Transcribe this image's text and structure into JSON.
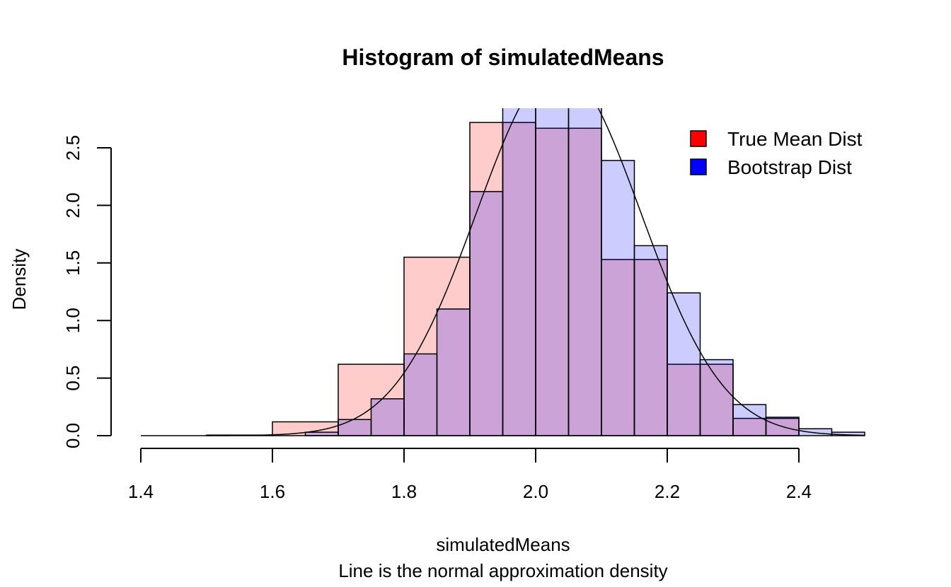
{
  "chart_data": {
    "type": "bar",
    "title": "Histogram of simulatedMeans",
    "xlabel": "simulatedMeans",
    "sub": "Line is the normal approximation density",
    "ylabel": "Density",
    "xlim": [
      1.4,
      2.5
    ],
    "ylim": [
      0,
      2.7
    ],
    "x_ticks": [
      1.4,
      1.6,
      1.8,
      2.0,
      2.2,
      2.4
    ],
    "x_tick_labels": [
      "1.4",
      "1.6",
      "1.8",
      "2.0",
      "2.2",
      "2.4"
    ],
    "y_ticks": [
      0,
      0.5,
      1,
      1.5,
      2,
      2.5
    ],
    "y_tick_labels": [
      "0.0",
      "0.5",
      "1.0",
      "1.5",
      "2.0",
      "2.5"
    ],
    "legend": {
      "position": "top-right",
      "entries": [
        {
          "label": "True Mean Dist",
          "color": "#ff0000"
        },
        {
          "label": "Bootstrap Dist",
          "color": "#0000ff"
        }
      ]
    },
    "series": [
      {
        "name": "True Mean Dist",
        "fill": "rgba(255,0,0,0.2)",
        "bins": [
          {
            "x0": 1.4,
            "x1": 1.5,
            "density": 0
          },
          {
            "x0": 1.5,
            "x1": 1.6,
            "density": 0.005
          },
          {
            "x0": 1.6,
            "x1": 1.7,
            "density": 0.12
          },
          {
            "x0": 1.7,
            "x1": 1.8,
            "density": 0.62
          },
          {
            "x0": 1.8,
            "x1": 1.9,
            "density": 1.55
          },
          {
            "x0": 1.9,
            "x1": 1.95,
            "density": 2.72
          },
          {
            "x0": 1.95,
            "x1": 2.0,
            "density": 2.72
          },
          {
            "x0": 2.0,
            "x1": 2.05,
            "density": 2.67
          },
          {
            "x0": 2.05,
            "x1": 2.1,
            "density": 2.67
          },
          {
            "x0": 2.1,
            "x1": 2.15,
            "density": 1.53
          },
          {
            "x0": 2.15,
            "x1": 2.2,
            "density": 1.53
          },
          {
            "x0": 2.2,
            "x1": 2.25,
            "density": 0.62
          },
          {
            "x0": 2.25,
            "x1": 2.3,
            "density": 0.62
          },
          {
            "x0": 2.3,
            "x1": 2.35,
            "density": 0.15
          },
          {
            "x0": 2.35,
            "x1": 2.4,
            "density": 0.15
          }
        ]
      },
      {
        "name": "Bootstrap Dist",
        "fill": "rgba(0,0,255,0.2)",
        "bins": [
          {
            "x0": 1.65,
            "x1": 1.7,
            "density": 0.03
          },
          {
            "x0": 1.7,
            "x1": 1.75,
            "density": 0.14
          },
          {
            "x0": 1.75,
            "x1": 1.8,
            "density": 0.32
          },
          {
            "x0": 1.8,
            "x1": 1.85,
            "density": 0.71
          },
          {
            "x0": 1.85,
            "x1": 1.9,
            "density": 1.1
          },
          {
            "x0": 1.9,
            "x1": 1.95,
            "density": 2.12
          },
          {
            "x0": 1.95,
            "x1": 2.0,
            "density": 2.9
          },
          {
            "x0": 2.0,
            "x1": 2.05,
            "density": 2.9
          },
          {
            "x0": 2.05,
            "x1": 2.1,
            "density": 2.9
          },
          {
            "x0": 2.1,
            "x1": 2.15,
            "density": 2.39
          },
          {
            "x0": 2.15,
            "x1": 2.2,
            "density": 1.65
          },
          {
            "x0": 2.2,
            "x1": 2.25,
            "density": 1.24
          },
          {
            "x0": 2.25,
            "x1": 2.3,
            "density": 0.66
          },
          {
            "x0": 2.3,
            "x1": 2.35,
            "density": 0.27
          },
          {
            "x0": 2.35,
            "x1": 2.4,
            "density": 0.16
          },
          {
            "x0": 2.4,
            "x1": 2.45,
            "density": 0.06
          },
          {
            "x0": 2.45,
            "x1": 2.5,
            "density": 0.03
          }
        ]
      }
    ],
    "density_line": {
      "name": "normal approximation density",
      "mean": 2.035,
      "sd": 0.125
    }
  }
}
